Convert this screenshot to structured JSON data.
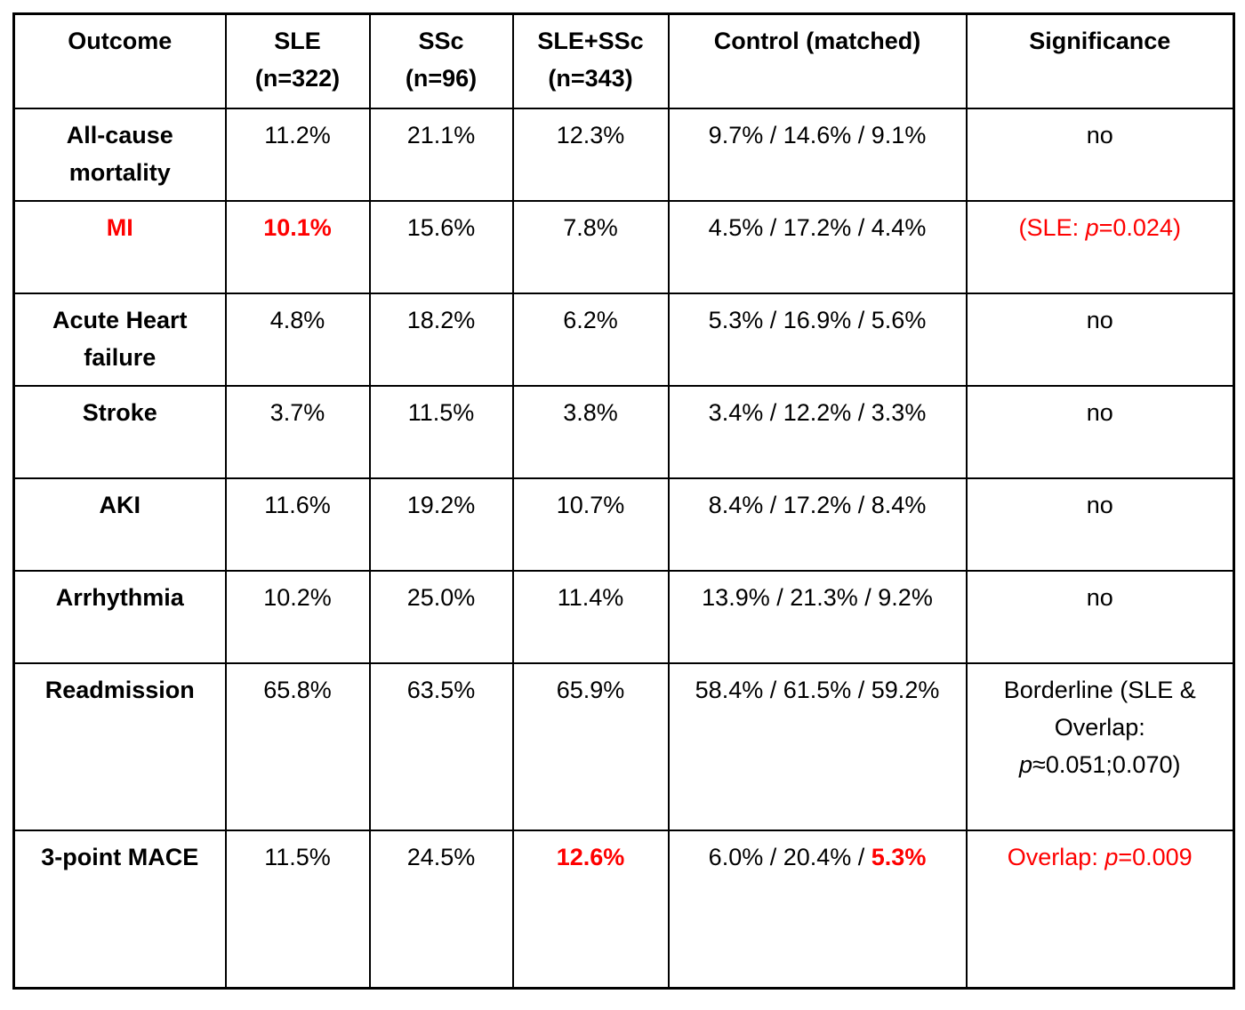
{
  "colors": {
    "red": "#fe0000",
    "text": "#000000",
    "border": "#000000",
    "background": "#ffffff"
  },
  "chart_data": {
    "type": "table",
    "columns": [
      {
        "key": "outcome",
        "label": "Outcome"
      },
      {
        "key": "sle",
        "label": "SLE\n(n=322)"
      },
      {
        "key": "ssc",
        "label": "SSc\n(n=96)"
      },
      {
        "key": "sle-ssc",
        "label": "SLE+SSc\n(n=343)"
      },
      {
        "key": "control",
        "label": "Control (matched)"
      },
      {
        "key": "significance",
        "label": "Significance"
      }
    ],
    "rows": [
      {
        "name": "all-cause-mortality",
        "cells": [
          [
            {
              "t": "All-cause\nmortality"
            }
          ],
          [
            {
              "t": "11.2%"
            }
          ],
          [
            {
              "t": "21.1%"
            }
          ],
          [
            {
              "t": "12.3%"
            }
          ],
          [
            {
              "t": "9.7% / 14.6% / 9.1%"
            }
          ],
          [
            {
              "t": "no"
            }
          ]
        ]
      },
      {
        "name": "mi",
        "cells": [
          [
            {
              "t": "MI",
              "red": true
            }
          ],
          [
            {
              "t": "10.1%",
              "red": true,
              "b": true
            }
          ],
          [
            {
              "t": "15.6%"
            }
          ],
          [
            {
              "t": "7.8%"
            }
          ],
          [
            {
              "t": "4.5% / 17.2% / 4.4%"
            }
          ],
          [
            {
              "t": "(SLE: ",
              "red": true
            },
            {
              "t": "p",
              "red": true,
              "i": true
            },
            {
              "t": "=0.024)",
              "red": true
            }
          ]
        ]
      },
      {
        "name": "acute-heart-failure",
        "cells": [
          [
            {
              "t": "Acute Heart\nfailure"
            }
          ],
          [
            {
              "t": "4.8%"
            }
          ],
          [
            {
              "t": "18.2%"
            }
          ],
          [
            {
              "t": "6.2%"
            }
          ],
          [
            {
              "t": "5.3% / 16.9% / 5.6%"
            }
          ],
          [
            {
              "t": "no"
            }
          ]
        ]
      },
      {
        "name": "stroke",
        "cells": [
          [
            {
              "t": "Stroke"
            }
          ],
          [
            {
              "t": "3.7%"
            }
          ],
          [
            {
              "t": "11.5%"
            }
          ],
          [
            {
              "t": "3.8%"
            }
          ],
          [
            {
              "t": "3.4% / 12.2% / 3.3%"
            }
          ],
          [
            {
              "t": "no"
            }
          ]
        ]
      },
      {
        "name": "aki",
        "cells": [
          [
            {
              "t": "AKI"
            }
          ],
          [
            {
              "t": "11.6%"
            }
          ],
          [
            {
              "t": "19.2%"
            }
          ],
          [
            {
              "t": "10.7%"
            }
          ],
          [
            {
              "t": "8.4% / 17.2% / 8.4%"
            }
          ],
          [
            {
              "t": "no"
            }
          ]
        ]
      },
      {
        "name": "arrhythmia",
        "cells": [
          [
            {
              "t": "Arrhythmia"
            }
          ],
          [
            {
              "t": "10.2%"
            }
          ],
          [
            {
              "t": "25.0%"
            }
          ],
          [
            {
              "t": "11.4%"
            }
          ],
          [
            {
              "t": "13.9% / 21.3% / 9.2%"
            }
          ],
          [
            {
              "t": "no"
            }
          ]
        ]
      },
      {
        "name": "readmission",
        "cells": [
          [
            {
              "t": "Readmission"
            }
          ],
          [
            {
              "t": "65.8%"
            }
          ],
          [
            {
              "t": "63.5%"
            }
          ],
          [
            {
              "t": "65.9%"
            }
          ],
          [
            {
              "t": "58.4% / 61.5% / 59.2%"
            }
          ],
          [
            {
              "t": "Borderline (SLE &\nOverlap:\n"
            },
            {
              "t": "p",
              "i": true
            },
            {
              "t": "≈0.051;0.070)"
            }
          ]
        ]
      },
      {
        "name": "3-point-mace",
        "cells": [
          [
            {
              "t": "3-point MACE"
            }
          ],
          [
            {
              "t": "11.5%"
            }
          ],
          [
            {
              "t": "24.5%"
            }
          ],
          [
            {
              "t": "12.6%",
              "red": true,
              "b": true
            }
          ],
          [
            {
              "t": "6.0% / 20.4% / "
            },
            {
              "t": "5.3%",
              "red": true,
              "b": true
            }
          ],
          [
            {
              "t": "Overlap: ",
              "red": true
            },
            {
              "t": "p",
              "red": true,
              "i": true
            },
            {
              "t": "=0.009",
              "red": true
            }
          ]
        ]
      }
    ]
  }
}
